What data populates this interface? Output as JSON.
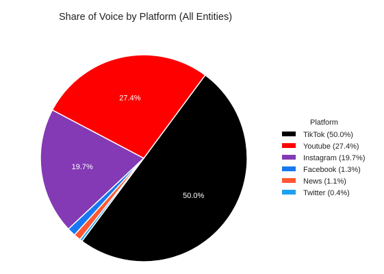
{
  "chart_data": {
    "type": "pie",
    "title": "Share of Voice by Platform (All Entities)",
    "legend_title": "Platform",
    "legend_position": "right",
    "slices": [
      {
        "name": "TikTok",
        "value": 50.0,
        "label": "50.0%",
        "legend": "TikTok (50.0%)",
        "color": "#000000"
      },
      {
        "name": "Youtube",
        "value": 27.4,
        "label": "27.4%",
        "legend": "Youtube (27.4%)",
        "color": "#ff0000"
      },
      {
        "name": "Instagram",
        "value": 19.7,
        "label": "19.7%",
        "legend": "Instagram (19.7%)",
        "color": "#833ab4"
      },
      {
        "name": "Facebook",
        "value": 1.3,
        "label": "",
        "legend": "Facebook (1.3%)",
        "color": "#1877f2"
      },
      {
        "name": "News",
        "value": 1.1,
        "label": "",
        "legend": "News (1.1%)",
        "color": "#ff5733"
      },
      {
        "name": "Twitter",
        "value": 0.4,
        "label": "",
        "legend": "Twitter (0.4%)",
        "color": "#1da1f2"
      }
    ]
  }
}
